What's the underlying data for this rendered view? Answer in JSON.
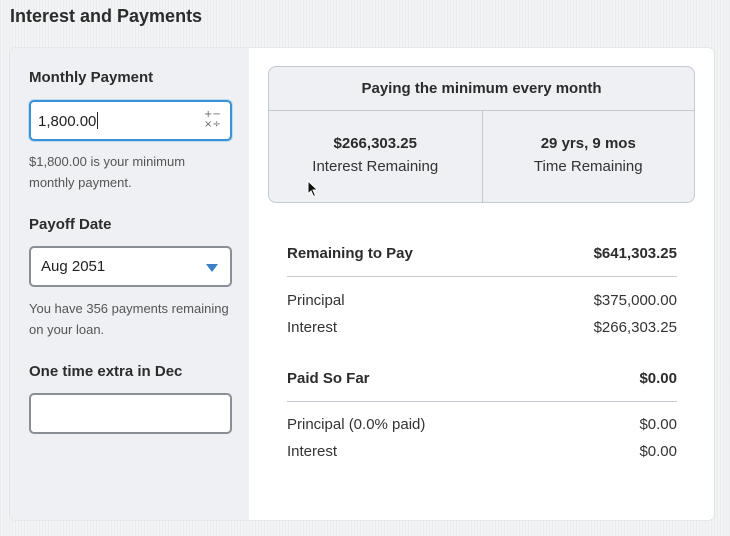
{
  "page_title": "Interest and Payments",
  "monthly_payment": {
    "label": "Monthly Payment",
    "value": "1,800.00",
    "icon": "calculator-icon",
    "help": "$1,800.00 is your minimum monthly payment."
  },
  "payoff_date": {
    "label": "Payoff Date",
    "selected": "Aug 2051",
    "help": "You have 356 payments remaining on your loan."
  },
  "extra": {
    "label": "One time extra in Dec",
    "value": ""
  },
  "summary": {
    "heading": "Paying the minimum every month",
    "interest_value": "$266,303.25",
    "interest_label": "Interest Remaining",
    "time_value": "29 yrs, 9 mos",
    "time_label": "Time Remaining"
  },
  "remaining": {
    "label": "Remaining to Pay",
    "total": "$641,303.25",
    "principal_label": "Principal",
    "principal": "$375,000.00",
    "interest_label": "Interest",
    "interest": "$266,303.25"
  },
  "paid": {
    "label": "Paid So Far",
    "total": "$0.00",
    "principal_label": "Principal (0.0% paid)",
    "principal": "$0.00",
    "interest_label": "Interest",
    "interest": "$0.00"
  },
  "colors": {
    "accent": "#3a91d6",
    "panel": "#eef0f4"
  }
}
